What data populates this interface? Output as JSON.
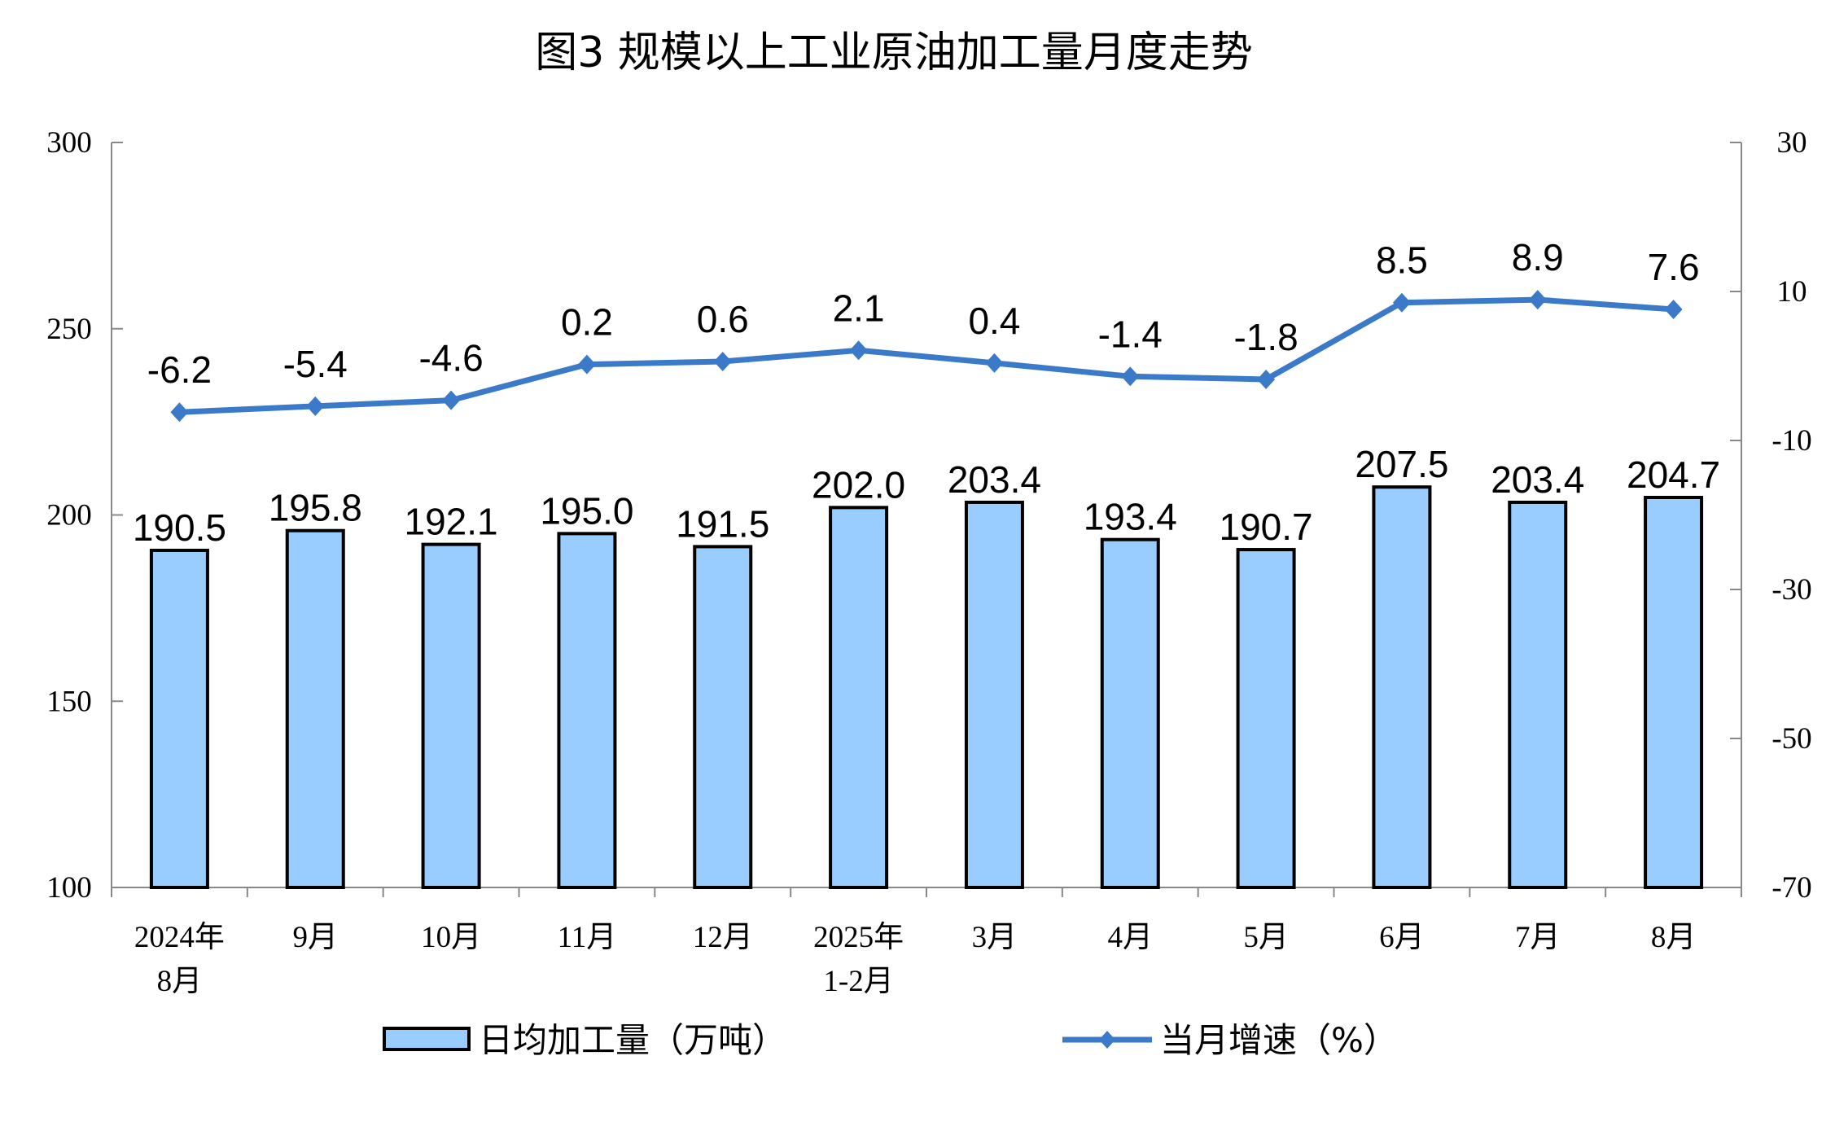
{
  "chart_data": {
    "type": "bar+line",
    "title": "图3  规模以上工业原油加工量月度走势",
    "categories": [
      [
        "2024年",
        "8月"
      ],
      [
        "9月"
      ],
      [
        "10月"
      ],
      [
        "11月"
      ],
      [
        "12月"
      ],
      [
        "2025年",
        "1-2月"
      ],
      [
        "3月"
      ],
      [
        "4月"
      ],
      [
        "5月"
      ],
      [
        "6月"
      ],
      [
        "7月"
      ],
      [
        "8月"
      ]
    ],
    "series": [
      {
        "name": "日均加工量（万吨）",
        "type": "bar",
        "axis": "left",
        "color": "#99CCFF",
        "values": [
          190.5,
          195.8,
          192.1,
          195.0,
          191.5,
          202.0,
          203.4,
          193.4,
          190.7,
          207.5,
          203.4,
          204.7
        ],
        "labels": [
          "190.5",
          "195.8",
          "192.1",
          "195.0",
          "191.5",
          "202.0",
          "203.4",
          "193.4",
          "190.7",
          "207.5",
          "203.4",
          "204.7"
        ]
      },
      {
        "name": "当月增速（%）",
        "type": "line",
        "axis": "right",
        "color": "#3A7AC8",
        "values": [
          -6.2,
          -5.4,
          -4.6,
          0.2,
          0.6,
          2.1,
          0.4,
          -1.4,
          -1.8,
          8.5,
          8.9,
          7.6
        ],
        "labels": [
          "-6.2",
          "-5.4",
          "-4.6",
          "0.2",
          "0.6",
          "2.1",
          "0.4",
          "-1.4",
          "-1.8",
          "8.5",
          "8.9",
          "7.6"
        ]
      }
    ],
    "left_axis": {
      "ylim": [
        100,
        300
      ],
      "ticks": [
        "100",
        "150",
        "200",
        "250",
        "300"
      ]
    },
    "right_axis": {
      "ylim": [
        -70,
        30
      ],
      "ticks": [
        "-70",
        "-50",
        "-30",
        "-10",
        "10",
        "30"
      ]
    },
    "legend_position": "bottom",
    "grid": false
  }
}
